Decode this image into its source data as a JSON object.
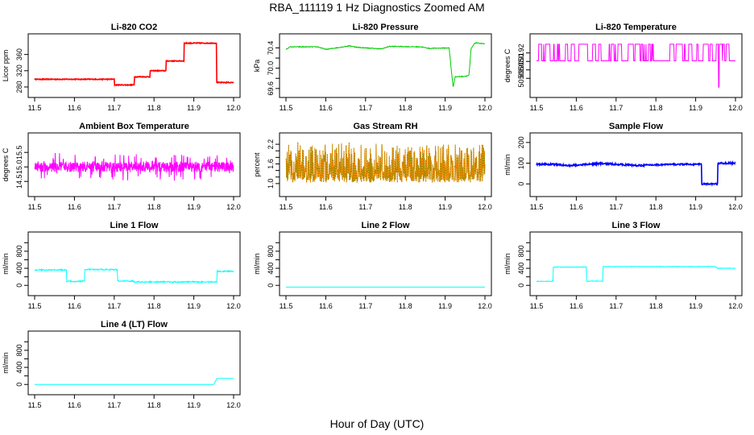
{
  "page": {
    "title": "RBA_111119  1 Hz Diagnostics Zoomed AM",
    "xlabel": "Hour of Day (UTC)"
  },
  "chart_data": [
    {
      "id": "co2",
      "type": "line",
      "title": "Li-820 CO2",
      "ylabel": "Licor ppm",
      "color": "#ff0000",
      "xlim": [
        11.5,
        12.0
      ],
      "ylim": [
        270,
        395
      ],
      "xticks": [
        11.5,
        11.6,
        11.7,
        11.8,
        11.9,
        12.0
      ],
      "yticks": [
        280,
        320,
        360
      ],
      "ytick_labels": [
        "280",
        "320",
        "360"
      ],
      "x": [
        11.48,
        11.7,
        11.7,
        11.75,
        11.75,
        11.79,
        11.79,
        11.83,
        11.83,
        11.875,
        11.875,
        11.957,
        11.957,
        12.0
      ],
      "y": [
        299,
        299,
        285,
        285,
        305,
        305,
        320,
        320,
        344,
        344,
        388,
        388,
        291,
        291
      ],
      "noise": 1
    },
    {
      "id": "pressure",
      "type": "line",
      "title": "Li-820 Pressure",
      "ylabel": "kPa",
      "color": "#00cc00",
      "xlim": [
        11.5,
        12.0
      ],
      "ylim": [
        69.55,
        70.55
      ],
      "xticks": [
        11.5,
        11.6,
        11.7,
        11.8,
        11.9,
        12.0
      ],
      "yticks": [
        69.6,
        69.8,
        70.0,
        70.2,
        70.4
      ],
      "ytick_labels": [
        "69.6",
        "70.0",
        "70.4"
      ],
      "x": [
        11.5,
        11.51,
        11.58,
        11.6,
        11.66,
        11.68,
        11.74,
        11.76,
        11.84,
        11.86,
        11.91,
        11.915,
        11.92,
        11.925,
        11.95,
        11.96,
        11.965,
        11.975,
        12.0
      ],
      "y": [
        70.37,
        70.42,
        70.42,
        70.37,
        70.44,
        70.41,
        70.38,
        70.43,
        70.42,
        70.39,
        70.4,
        70.0,
        69.62,
        69.83,
        69.84,
        69.86,
        70.38,
        70.5,
        70.48
      ],
      "noise": 0.008
    },
    {
      "id": "licor-temp",
      "type": "line",
      "title": "Li-820 Temperature",
      "ylabel": "degrees C",
      "color": "#ff00ff",
      "xlim": [
        11.5,
        12.0
      ],
      "ylim": [
        50.875,
        50.935
      ],
      "xticks": [
        11.5,
        11.6,
        11.7,
        11.8,
        11.9,
        12.0
      ],
      "yticks": [
        50.89,
        50.9,
        50.91,
        50.92
      ],
      "ytick_labels": [
        "50.89",
        "50.90",
        "50.91",
        "50.92"
      ],
      "levels": [
        50.9107,
        50.9303
      ],
      "dip_x": 11.958,
      "dip_y": 50.8795,
      "noise": 0
    },
    {
      "id": "box-temp",
      "type": "line",
      "title": "Ambient Box Temperature",
      "ylabel": "degrees C",
      "color": "#ff00ff",
      "xlim": [
        11.5,
        12.0
      ],
      "ylim": [
        14.2,
        15.95
      ],
      "xticks": [
        11.5,
        11.6,
        11.7,
        11.8,
        11.9,
        12.0
      ],
      "yticks": [
        14.5,
        15.0,
        15.5
      ],
      "ytick_labels": [
        "14.5",
        "15.0",
        "15.5"
      ],
      "base": 15.0,
      "noise": 0.3
    },
    {
      "id": "rh",
      "type": "line",
      "title": "Gas Stream RH",
      "ylabel": "percent",
      "color": "#ff8c00",
      "color2": "#888800",
      "xlim": [
        11.5,
        12.0
      ],
      "ylim": [
        0.8,
        2.35
      ],
      "xticks": [
        11.5,
        11.6,
        11.7,
        11.8,
        11.9,
        12.0
      ],
      "yticks": [
        1.0,
        1.2,
        1.4,
        1.6,
        1.8,
        2.0,
        2.2
      ],
      "ytick_labels": [
        "1.0",
        "1.6",
        "2.2"
      ],
      "base": 1.1,
      "noise": 0.55
    },
    {
      "id": "sample-flow",
      "type": "line",
      "title": "Sample Flow",
      "ylabel": "ml/min",
      "color": "#0000ff",
      "xlim": [
        11.5,
        12.0
      ],
      "ylim": [
        -30,
        215
      ],
      "xticks": [
        11.5,
        11.6,
        11.7,
        11.8,
        11.9,
        12.0
      ],
      "yticks": [
        0,
        100,
        200
      ],
      "ytick_labels": [
        "0",
        "100",
        "200"
      ],
      "x": [
        11.5,
        11.55,
        11.58,
        11.61,
        11.66,
        11.7,
        11.75,
        11.81,
        11.85,
        11.915,
        11.915,
        11.955,
        11.955,
        12.0
      ],
      "y": [
        95,
        94,
        88,
        92,
        98,
        95,
        89,
        93,
        94,
        95,
        0,
        0,
        100,
        100
      ],
      "noise": 4
    },
    {
      "id": "line1",
      "type": "line",
      "title": "Line 1 Flow",
      "ylabel": "ml/min",
      "color": "#00ffff",
      "xlim": [
        11.5,
        12.0
      ],
      "ylim": [
        -90,
        1100
      ],
      "xticks": [
        11.5,
        11.6,
        11.7,
        11.8,
        11.9,
        12.0
      ],
      "yticks": [
        0,
        200,
        400,
        600,
        800,
        1000
      ],
      "ytick_labels": [
        "0",
        "400",
        "800"
      ],
      "x": [
        11.5,
        11.58,
        11.58,
        11.625,
        11.625,
        11.708,
        11.708,
        11.75,
        11.75,
        11.958,
        11.958,
        12.0
      ],
      "y": [
        360,
        360,
        95,
        95,
        370,
        370,
        100,
        100,
        80,
        80,
        330,
        330
      ],
      "noise": 15
    },
    {
      "id": "line2",
      "type": "line",
      "title": "Line 2 Flow",
      "ylabel": "ml/min",
      "color": "#00ffff",
      "xlim": [
        11.5,
        12.0
      ],
      "ylim": [
        -90,
        1100
      ],
      "xticks": [
        11.5,
        11.6,
        11.7,
        11.8,
        11.9,
        12.0
      ],
      "yticks": [
        0,
        200,
        400,
        600,
        800,
        1000
      ],
      "ytick_labels": [
        "0",
        "400",
        "800"
      ],
      "x": [
        11.5,
        12.0
      ],
      "y": [
        -40,
        -40
      ],
      "noise": 0
    },
    {
      "id": "line3",
      "type": "line",
      "title": "Line 3 Flow",
      "ylabel": "ml/min",
      "color": "#00ffff",
      "xlim": [
        11.5,
        12.0
      ],
      "ylim": [
        -90,
        1100
      ],
      "xticks": [
        11.5,
        11.6,
        11.7,
        11.8,
        11.9,
        12.0
      ],
      "yticks": [
        0,
        200,
        400,
        600,
        800,
        1000
      ],
      "ytick_labels": [
        "0",
        "400",
        "800"
      ],
      "x": [
        11.5,
        11.542,
        11.542,
        11.625,
        11.625,
        11.667,
        11.667,
        11.95,
        11.955,
        12.0
      ],
      "y": [
        95,
        95,
        430,
        430,
        100,
        100,
        440,
        440,
        400,
        400
      ],
      "noise": 6
    },
    {
      "id": "line4",
      "type": "line",
      "title": "Line 4 (LT) Flow",
      "ylabel": "ml/min",
      "color": "#00ffff",
      "xlim": [
        11.5,
        12.0
      ],
      "ylim": [
        -90,
        1100
      ],
      "xticks": [
        11.5,
        11.6,
        11.7,
        11.8,
        11.9,
        12.0
      ],
      "yticks": [
        0,
        200,
        400,
        600,
        800,
        1000
      ],
      "ytick_labels": [
        "0",
        "400",
        "800"
      ],
      "x": [
        11.5,
        11.958,
        11.958,
        12.0
      ],
      "y": [
        0,
        0,
        140,
        140
      ],
      "noise": 0
    }
  ]
}
